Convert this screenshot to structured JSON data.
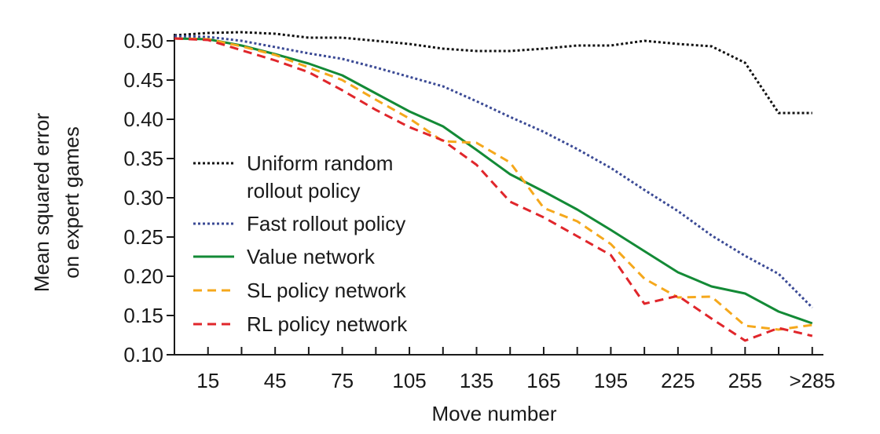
{
  "chart_data": {
    "type": "line",
    "xlabel": "Move number",
    "ylabel_lines": [
      "Mean squared error",
      "on expert games"
    ],
    "ylim": [
      0.1,
      0.5
    ],
    "y_ticks": [
      "0.10",
      "0.15",
      "0.20",
      "0.25",
      "0.30",
      "0.35",
      "0.40",
      "0.45",
      "0.50"
    ],
    "x_range": [
      0,
      290
    ],
    "x_tick_labels": [
      "15",
      "45",
      "75",
      "105",
      "135",
      "165",
      "195",
      "225",
      "255",
      ">285"
    ],
    "grid": false,
    "legend_position": "center-left",
    "x": [
      0,
      15,
      30,
      45,
      60,
      75,
      90,
      105,
      120,
      135,
      150,
      165,
      180,
      195,
      210,
      225,
      240,
      255,
      270,
      285
    ],
    "series": [
      {
        "name": "Uniform random rollout policy",
        "color": "#111111",
        "style": "dotted",
        "values": [
          0.507,
          0.51,
          0.511,
          0.509,
          0.504,
          0.504,
          0.5,
          0.496,
          0.49,
          0.487,
          0.487,
          0.49,
          0.494,
          0.494,
          0.5,
          0.496,
          0.493,
          0.472,
          0.408,
          0.408
        ]
      },
      {
        "name": "Fast rollout policy",
        "color": "#3b4a95",
        "style": "dotted",
        "values": [
          0.506,
          0.505,
          0.5,
          0.492,
          0.484,
          0.477,
          0.466,
          0.454,
          0.442,
          0.423,
          0.403,
          0.384,
          0.362,
          0.338,
          0.31,
          0.283,
          0.252,
          0.226,
          0.203,
          0.16
        ]
      },
      {
        "name": "Value network",
        "color": "#138a36",
        "style": "solid",
        "values": [
          0.503,
          0.502,
          0.494,
          0.483,
          0.471,
          0.456,
          0.433,
          0.41,
          0.391,
          0.361,
          0.33,
          0.308,
          0.285,
          0.259,
          0.232,
          0.205,
          0.187,
          0.178,
          0.155,
          0.14
        ]
      },
      {
        "name": "SL policy network",
        "color": "#f5a81c",
        "style": "dashed",
        "values": [
          0.503,
          0.502,
          0.493,
          0.482,
          0.466,
          0.45,
          0.425,
          0.401,
          0.372,
          0.37,
          0.345,
          0.287,
          0.27,
          0.241,
          0.197,
          0.173,
          0.174,
          0.137,
          0.132,
          0.138
        ]
      },
      {
        "name": "RL policy network",
        "color": "#e0262b",
        "style": "dashed",
        "values": [
          0.503,
          0.501,
          0.488,
          0.475,
          0.46,
          0.437,
          0.412,
          0.39,
          0.373,
          0.342,
          0.295,
          0.275,
          0.251,
          0.227,
          0.165,
          0.175,
          0.146,
          0.118,
          0.134,
          0.124
        ]
      }
    ]
  }
}
